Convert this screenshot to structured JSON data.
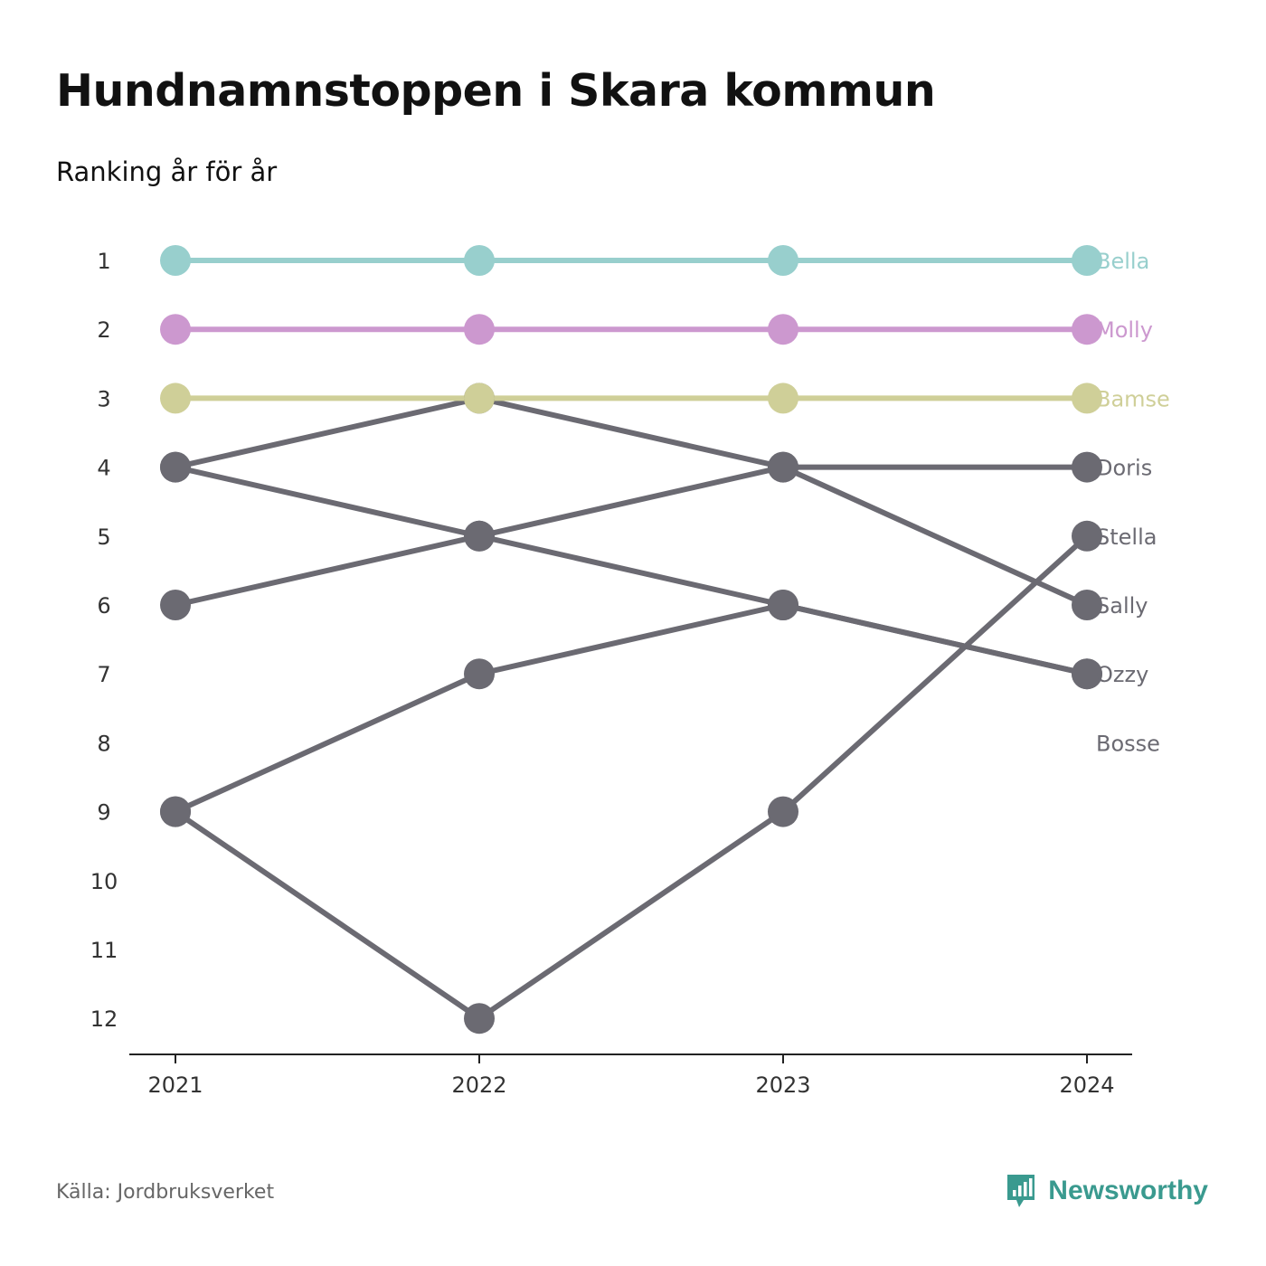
{
  "header": {
    "title": "Hundnamnstoppen i Skara kommun",
    "subtitle": "Ranking år för år"
  },
  "footer": {
    "source": "Källa: Jordbruksverket",
    "brand": "Newsworthy",
    "brand_icon": "newsworthy-logo-icon"
  },
  "colors": {
    "accent": "#3a9a8f",
    "gray": "#6b6a72",
    "axis": "#222222"
  },
  "chart_data": {
    "type": "line",
    "subtype": "bump",
    "x": [
      "2021",
      "2022",
      "2023",
      "2024"
    ],
    "y_ticks": [
      1,
      2,
      3,
      4,
      5,
      6,
      7,
      8,
      9,
      10,
      11,
      12
    ],
    "ylim": [
      1,
      12
    ],
    "y_reversed": true,
    "grid": false,
    "legend": "end-labels",
    "series": [
      {
        "name": "Bella",
        "color": "#98cfcd",
        "values": [
          1,
          1,
          1,
          1
        ]
      },
      {
        "name": "Molly",
        "color": "#cc98cf",
        "values": [
          2,
          2,
          2,
          2
        ]
      },
      {
        "name": "Bamse",
        "color": "#cfcf98",
        "values": [
          3,
          3,
          3,
          3
        ]
      },
      {
        "name": "Doris",
        "color": "#6b6a72",
        "values": [
          6,
          5,
          4,
          4
        ]
      },
      {
        "name": "Stella",
        "color": "#6b6a72",
        "values": [
          9,
          12,
          9,
          5
        ]
      },
      {
        "name": "Sally",
        "color": "#6b6a72",
        "values": [
          4,
          3,
          4,
          6
        ]
      },
      {
        "name": "Ozzy",
        "color": "#6b6a72",
        "values": [
          4,
          5,
          6,
          7
        ]
      },
      {
        "name": "Bosse",
        "color": "#6b6a72",
        "values": [
          9,
          7,
          6,
          7
        ]
      }
    ],
    "end_label_ranks": [
      1,
      2,
      3,
      4,
      5,
      6,
      7,
      8
    ]
  }
}
